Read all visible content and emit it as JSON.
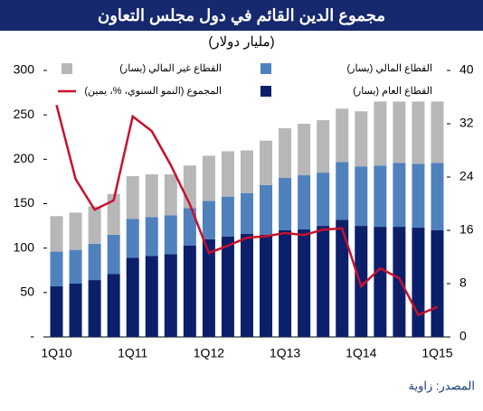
{
  "chart_data": {
    "type": "bar",
    "stacked": true,
    "title": "مجموع الدين القائم في دول مجلس التعاون",
    "subtitle": "(مليار دولار)",
    "source": "المصدر: زاوية",
    "categories": [
      "1Q10",
      null,
      null,
      null,
      "1Q11",
      null,
      null,
      null,
      "1Q12",
      null,
      null,
      null,
      "1Q13",
      null,
      null,
      null,
      "1Q14",
      null,
      null,
      null,
      "1Q15"
    ],
    "series": [
      {
        "name": "القطاع العام (يسار)",
        "color": "#0c1f6b",
        "values": [
          57,
          60,
          64,
          71,
          89,
          91,
          93,
          103,
          110,
          113,
          116,
          115,
          120,
          121,
          125,
          132,
          125,
          124,
          124,
          123,
          120
        ]
      },
      {
        "name": "القطاع المالي (يسار)",
        "color": "#4f81bd",
        "values": [
          39,
          38,
          41,
          44,
          44,
          44,
          44,
          42,
          43,
          45,
          46,
          56,
          59,
          61,
          60,
          65,
          67,
          69,
          72,
          72,
          76
        ]
      },
      {
        "name": "القطاع غير المالي (يسار)",
        "color": "#b7b7b7",
        "values": [
          40,
          42,
          42,
          46,
          48,
          48,
          46,
          48,
          51,
          51,
          48,
          50,
          56,
          58,
          59,
          60,
          62,
          72,
          69,
          70,
          69
        ]
      },
      {
        "name": "المجموع (النمو السنوي، %، يمين)",
        "color": "#c8102e",
        "type": "line",
        "axis": "y2",
        "values": [
          34.8,
          23.7,
          19.1,
          20.5,
          33.1,
          30.9,
          25.8,
          19.9,
          12.6,
          13.7,
          14.9,
          15.1,
          15.6,
          15.3,
          16.1,
          16.3,
          7.6,
          10.3,
          8.8,
          3.3,
          4.5
        ]
      }
    ],
    "ylim": [
      0,
      300
    ],
    "yticks": [
      {
        "value": 0,
        "label": "-"
      },
      50,
      100,
      150,
      200,
      250,
      300
    ],
    "y2lim": [
      0,
      40
    ],
    "y2ticks": [
      0,
      8,
      16,
      24,
      32,
      40
    ]
  }
}
